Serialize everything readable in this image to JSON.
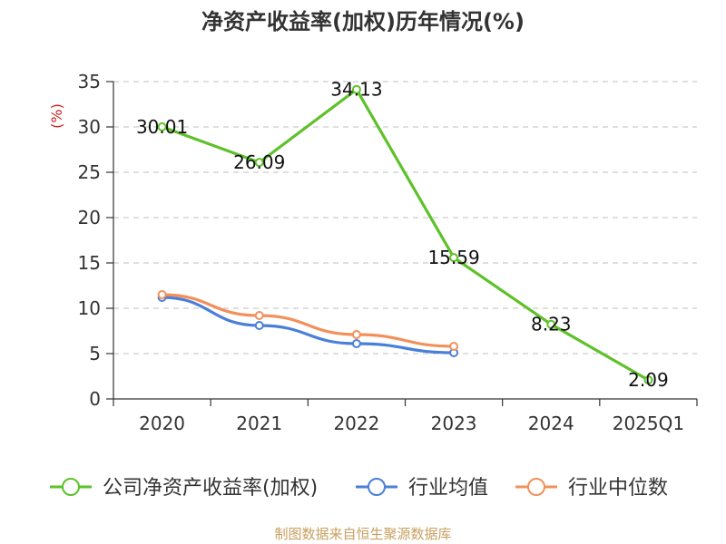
{
  "title": "净资产收益率(加权)历年情况(%)",
  "source_note": "制图数据来自恒生聚源数据库",
  "colors": {
    "series_roe": "#5ec12a",
    "series_industry_mean": "#4a7fd9",
    "series_industry_median": "#f2905a",
    "grid": "#cccccc",
    "axis": "#333333",
    "unit_label": "#cc2222",
    "source_note": "#c8a060"
  },
  "chart_data": {
    "type": "line",
    "title": "净资产收益率(加权)历年情况(%)",
    "ylabel": "(%)",
    "xlabel": "",
    "categories": [
      "2020",
      "2021",
      "2022",
      "2023",
      "2024",
      "2025Q1"
    ],
    "ylim": [
      0,
      35
    ],
    "yticks": [
      0,
      5,
      10,
      15,
      20,
      25,
      30,
      35
    ],
    "grid": true,
    "grid_style": "dashed horizontal",
    "legend_position": "bottom",
    "series": [
      {
        "name": "公司净资产收益率(加权)",
        "color": "#5ec12a",
        "values": [
          30.01,
          26.09,
          34.13,
          15.59,
          8.23,
          2.09
        ],
        "data_labels": [
          "30.01",
          "26.09",
          "34.13",
          "15.59",
          "8.23",
          "2.09"
        ]
      },
      {
        "name": "行业均值",
        "color": "#4a7fd9",
        "values": [
          11.2,
          8.1,
          6.1,
          5.1,
          null,
          null
        ]
      },
      {
        "name": "行业中位数",
        "color": "#f2905a",
        "values": [
          11.5,
          9.2,
          7.1,
          5.8,
          null,
          null
        ]
      }
    ]
  }
}
